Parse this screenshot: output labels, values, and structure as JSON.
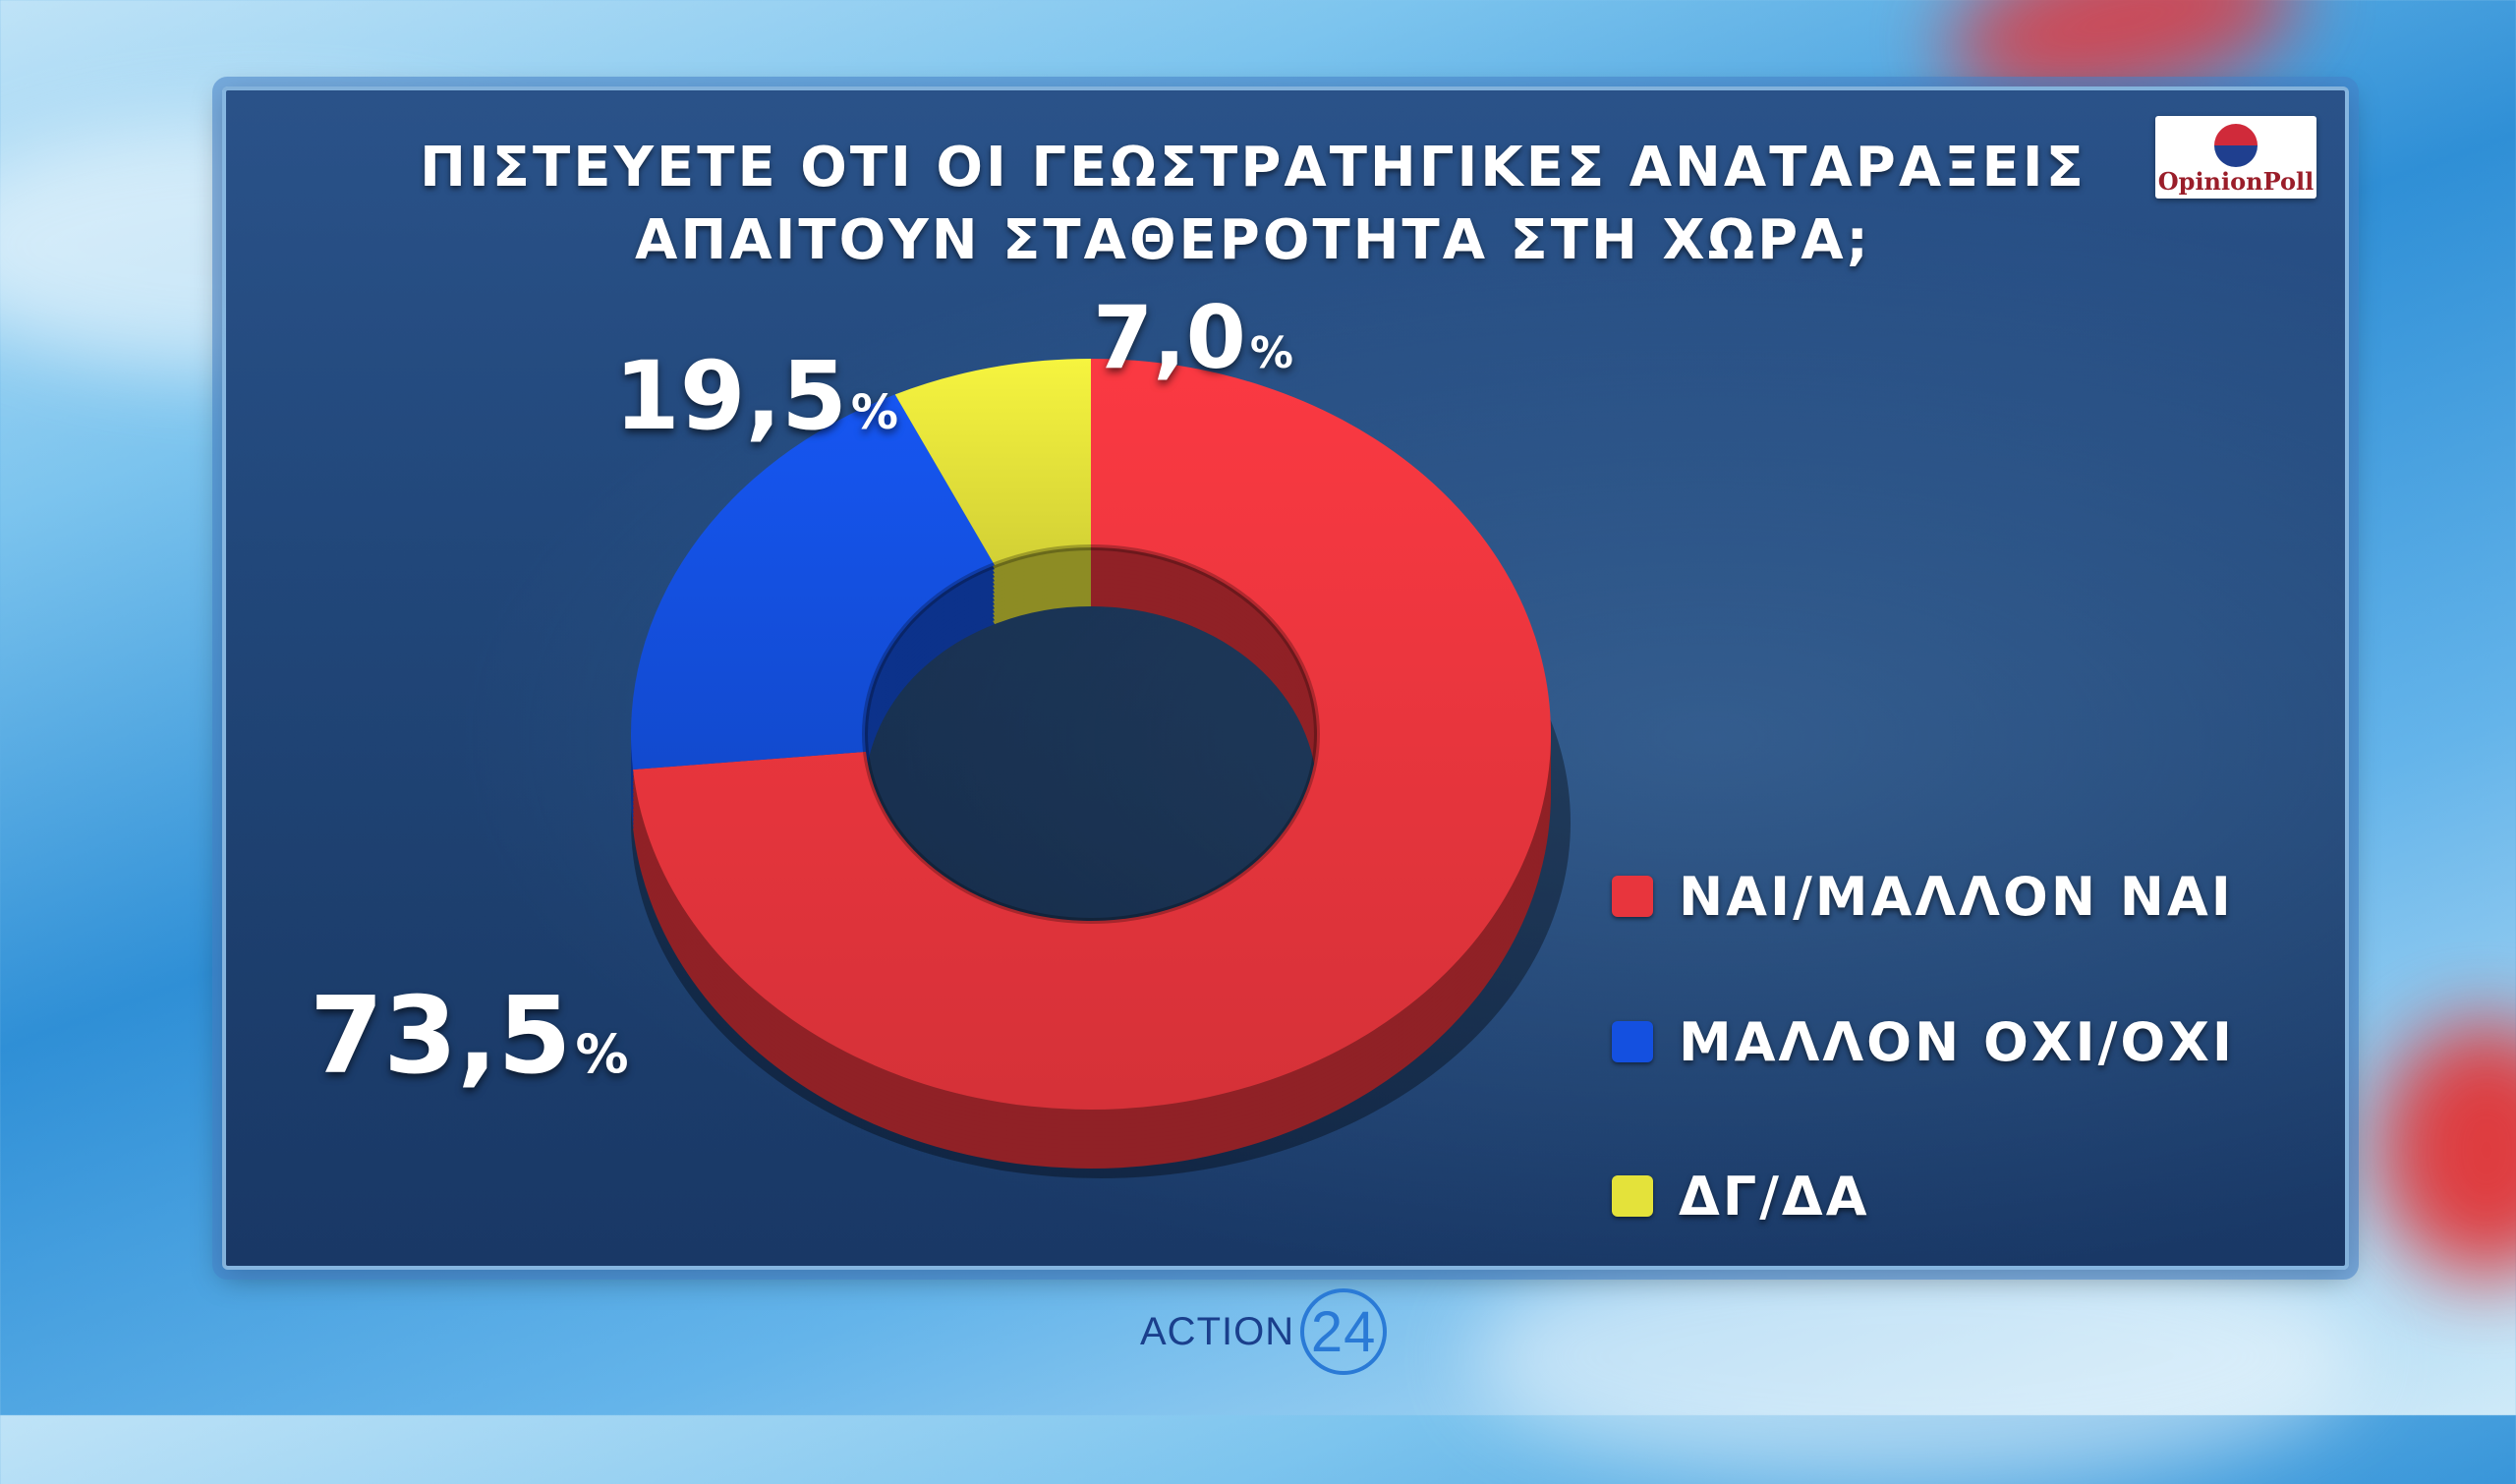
{
  "title": {
    "line1": "ΠΙΣΤΕΥΕΤΕ ΟΤΙ ΟΙ ΓΕΩΣΤΡΑΤΗΓΙΚΕΣ ΑΝΑΤΑΡΑΞΕΙΣ",
    "line2": "ΑΠΑΙΤΟΥΝ ΣΤΑΘΕΡΟΤΗΤΑ ΣΤΗ ΧΩΡΑ;"
  },
  "logo": {
    "text": "OpinionPoll"
  },
  "brand": {
    "name": "ACTION",
    "number": "24"
  },
  "percent_symbol": "%",
  "chart_data": {
    "type": "pie",
    "title": "ΠΙΣΤΕΥΕΤΕ ΟΤΙ ΟΙ ΓΕΩΣΤΡΑΤΗΓΙΚΕΣ ΑΝΑΤΑΡΑΞΕΙΣ ΑΠΑΙΤΟΥΝ ΣΤΑΘΕΡΟΤΗΤΑ ΣΤΗ ΧΩΡΑ;",
    "style": "donut",
    "legend_position": "right",
    "slices": [
      {
        "label": "ΝΑΙ/ΜΑΛΛΟΝ ΝΑΙ",
        "value": 73.5,
        "display": "73,5",
        "color": "#e8353d"
      },
      {
        "label": "ΜΑΛΛΟΝ ΟΧΙ/ΟΧΙ",
        "value": 19.5,
        "display": "19,5",
        "color": "#1450e0"
      },
      {
        "label": "ΔΓ/ΔΑ",
        "value": 7.0,
        "display": "7,0",
        "color": "#e4e23a"
      }
    ]
  }
}
